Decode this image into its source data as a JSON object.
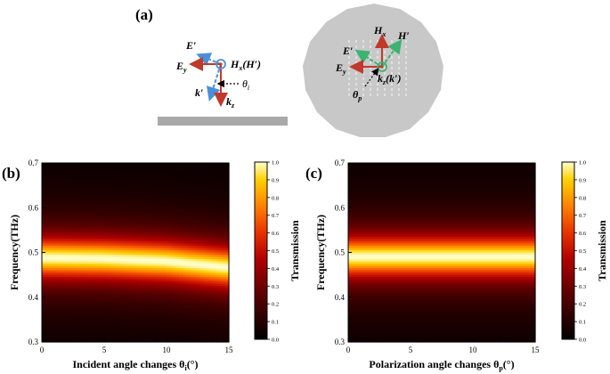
{
  "panel_a": {
    "label": "(a)",
    "left_diagram": {
      "labels": {
        "e_prime": "E′",
        "e_y": "E",
        "e_y_sub": "y",
        "h": "H",
        "h_sub": "x",
        "h_paren": "(H′)",
        "k_prime": "k′",
        "theta": "θ",
        "theta_sub": "i",
        "k": "k",
        "k_sub": "z"
      }
    },
    "right_diagram": {
      "labels": {
        "h": "H",
        "h_sub": "x",
        "h_prime": "H′",
        "e_prime": "E′",
        "e": "E",
        "e_sub": "y",
        "k": "k",
        "k_sub": "z",
        "k_paren": "(k′)",
        "theta": "θ",
        "theta_sub": "p"
      }
    },
    "colors": {
      "red_arrow": "#c0392b",
      "blue_arrow": "#4a90d9",
      "green_arrow": "#3cb371",
      "disc": "#c8c8c8",
      "substrate": "#a9a9a9"
    }
  },
  "panel_b": {
    "label": "(b)"
  },
  "panel_c": {
    "label": "(c)"
  },
  "colorbar_ticks": [
    "1.0",
    "0.9",
    "0.8",
    "0.7",
    "0.6",
    "0.5",
    "0.4",
    "0.3",
    "0.2",
    "0.1",
    "0.0"
  ],
  "chart_data": [
    {
      "type": "heatmap",
      "panel": "(b)",
      "xlabel": "Incident angle changes θ",
      "xlabel_sub": "i",
      "xlabel_unit": "(°)",
      "ylabel": "Frequency(THz)",
      "colorbar_label": "Transmission",
      "x_ticks": [
        0,
        5,
        10,
        15
      ],
      "y_ticks": [
        0.3,
        0.4,
        0.5,
        0.6,
        0.7
      ],
      "xlim": [
        0,
        15
      ],
      "ylim": [
        0.3,
        0.7
      ],
      "zlim": [
        0,
        1.0
      ],
      "colormap": "black-red-yellow-white",
      "resonance": {
        "angles": [
          0,
          5,
          10,
          15
        ],
        "center_frequency": [
          0.488,
          0.486,
          0.48,
          0.466
        ],
        "peak_transmission": [
          1.0,
          1.0,
          1.0,
          1.0
        ]
      }
    },
    {
      "type": "heatmap",
      "panel": "(c)",
      "xlabel": "Polarization angle changes θ",
      "xlabel_sub": "p",
      "xlabel_unit": "(°)",
      "ylabel": "Frequency(THz)",
      "colorbar_label": "Transmission",
      "x_ticks": [
        0,
        5,
        10,
        15
      ],
      "y_ticks": [
        0.3,
        0.4,
        0.5,
        0.6,
        0.7
      ],
      "xlim": [
        0,
        15
      ],
      "ylim": [
        0.3,
        0.7
      ],
      "zlim": [
        0,
        1.0
      ],
      "colormap": "black-red-yellow-white",
      "resonance": {
        "angles": [
          0,
          5,
          10,
          15
        ],
        "center_frequency": [
          0.49,
          0.49,
          0.49,
          0.49
        ],
        "peak_transmission": [
          1.0,
          1.0,
          1.0,
          1.0
        ]
      }
    }
  ]
}
